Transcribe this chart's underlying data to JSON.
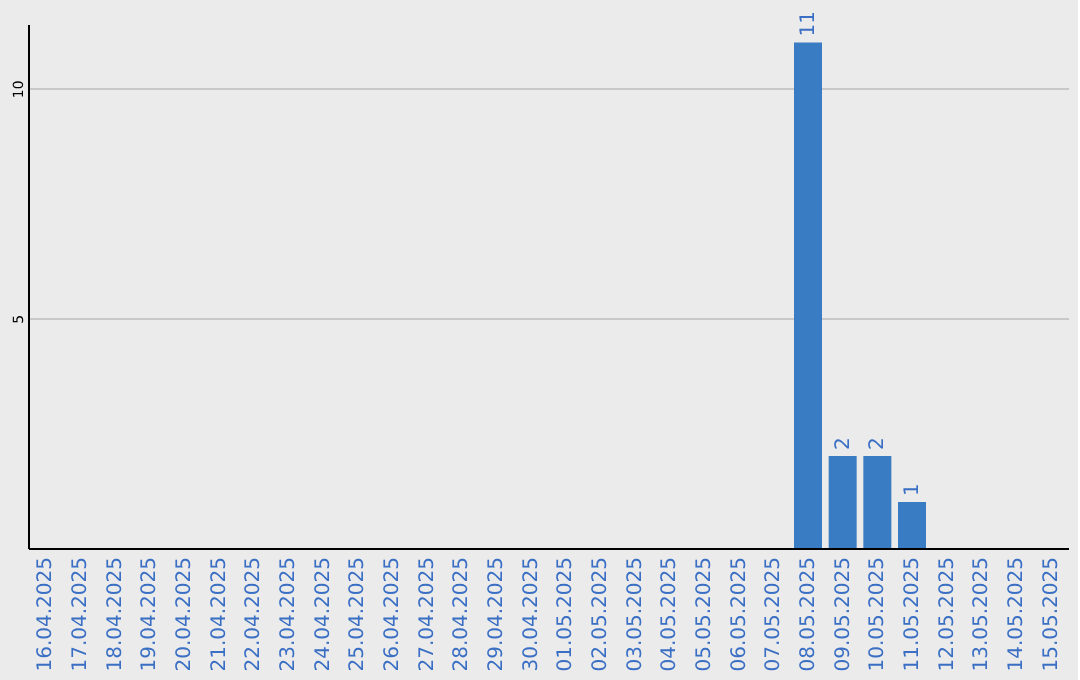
{
  "chart_data": {
    "type": "bar",
    "categories": [
      "16.04.2025",
      "17.04.2025",
      "18.04.2025",
      "19.04.2025",
      "20.04.2025",
      "21.04.2025",
      "22.04.2025",
      "23.04.2025",
      "24.04.2025",
      "25.04.2025",
      "26.04.2025",
      "27.04.2025",
      "28.04.2025",
      "29.04.2025",
      "30.04.2025",
      "01.05.2025",
      "02.05.2025",
      "03.05.2025",
      "04.05.2025",
      "05.05.2025",
      "06.05.2025",
      "07.05.2025",
      "08.05.2025",
      "09.05.2025",
      "10.05.2025",
      "11.05.2025",
      "12.05.2025",
      "13.05.2025",
      "14.05.2025",
      "15.05.2025"
    ],
    "values": [
      0,
      0,
      0,
      0,
      0,
      0,
      0,
      0,
      0,
      0,
      0,
      0,
      0,
      0,
      0,
      0,
      0,
      0,
      0,
      0,
      0,
      0,
      11,
      2,
      2,
      1,
      0,
      0,
      0,
      0
    ],
    "value_labels": [
      null,
      null,
      null,
      null,
      null,
      null,
      null,
      null,
      null,
      null,
      null,
      null,
      null,
      null,
      null,
      null,
      null,
      null,
      null,
      null,
      null,
      null,
      "11",
      "2",
      "2",
      "1",
      null,
      null,
      null,
      null
    ],
    "color": "#3a7cc4",
    "ylim": [
      0,
      11.4
    ],
    "yticks": [
      5,
      10
    ],
    "grid": "y"
  }
}
